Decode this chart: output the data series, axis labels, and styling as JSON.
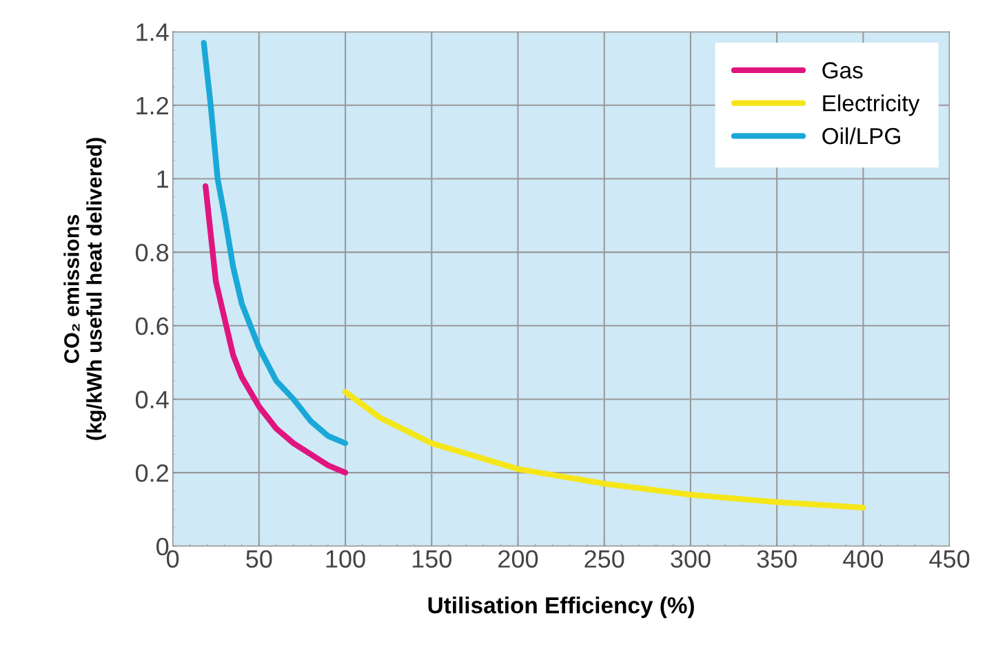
{
  "chart_data": {
    "type": "line",
    "xlabel": "Utilisation Efficiency (%)",
    "ylabel": "CO₂ emissions\n(kg/kWh useful heat delivered)",
    "xlim": [
      0,
      450
    ],
    "xticks": [
      0,
      50,
      100,
      150,
      200,
      250,
      300,
      350,
      400,
      450
    ],
    "ylim": [
      0,
      1.4
    ],
    "yticks": [
      0,
      0.2,
      0.4,
      0.6,
      0.8,
      1,
      1.2,
      1.4
    ],
    "grid": true,
    "legend": "top right",
    "marker": "none",
    "line_style": "solid",
    "series": [
      {
        "name": "Gas",
        "color": "#e0157f",
        "x": [
          19,
          22,
          25,
          30,
          35,
          40,
          50,
          60,
          70,
          80,
          90,
          100
        ],
        "values": [
          0.98,
          0.85,
          0.72,
          0.62,
          0.52,
          0.46,
          0.38,
          0.32,
          0.28,
          0.25,
          0.22,
          0.2
        ]
      },
      {
        "name": "Electricity",
        "color": "#f5e61a",
        "x": [
          100,
          120,
          150,
          200,
          250,
          300,
          350,
          400
        ],
        "values": [
          0.42,
          0.35,
          0.28,
          0.21,
          0.17,
          0.14,
          0.12,
          0.105
        ]
      },
      {
        "name": "Oil/LPG",
        "color": "#1aa8d8",
        "x": [
          18,
          22,
          26,
          30,
          35,
          40,
          50,
          60,
          70,
          80,
          90,
          100
        ],
        "values": [
          1.37,
          1.2,
          1.0,
          0.9,
          0.76,
          0.66,
          0.54,
          0.45,
          0.4,
          0.34,
          0.3,
          0.28
        ]
      }
    ]
  }
}
